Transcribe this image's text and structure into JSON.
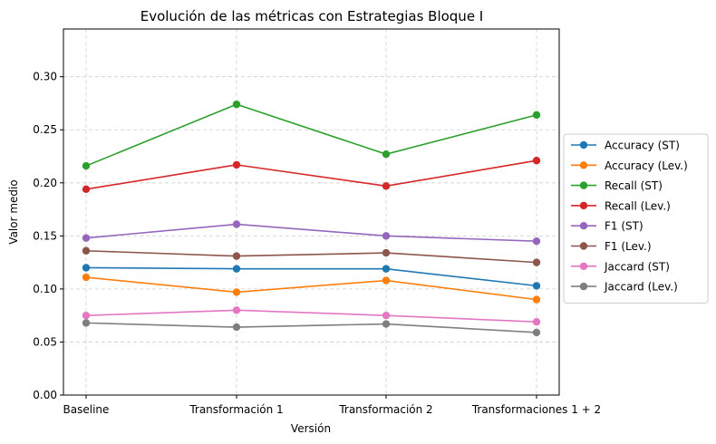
{
  "chart_data": {
    "type": "line",
    "title": "Evolución de las métricas con Estrategias Bloque I",
    "xlabel": "Versión",
    "ylabel": "Valor medio",
    "categories": [
      "Baseline",
      "Transformación 1",
      "Transformación 2",
      "Transformaciones 1 + 2"
    ],
    "ylim": [
      0,
      0.345
    ],
    "yticks": [
      "0.00",
      "0.05",
      "0.10",
      "0.15",
      "0.20",
      "0.25",
      "0.30"
    ],
    "grid": true,
    "legend_position": "right",
    "series": [
      {
        "name": "Accuracy (ST)",
        "color": "#1f77b4",
        "values": [
          0.12,
          0.119,
          0.119,
          0.103
        ]
      },
      {
        "name": "Accuracy (Lev.)",
        "color": "#ff7f0e",
        "values": [
          0.111,
          0.097,
          0.108,
          0.09
        ]
      },
      {
        "name": "Recall (ST)",
        "color": "#2ca02c",
        "values": [
          0.216,
          0.274,
          0.227,
          0.264
        ]
      },
      {
        "name": "Recall (Lev.)",
        "color": "#d62728",
        "values": [
          0.194,
          0.217,
          0.197,
          0.221
        ]
      },
      {
        "name": "F1 (ST)",
        "color": "#9467bd",
        "values": [
          0.148,
          0.161,
          0.15,
          0.145
        ]
      },
      {
        "name": "F1 (Lev.)",
        "color": "#8c564b",
        "values": [
          0.136,
          0.131,
          0.134,
          0.125
        ]
      },
      {
        "name": "Jaccard (ST)",
        "color": "#e377c2",
        "values": [
          0.075,
          0.08,
          0.075,
          0.069
        ]
      },
      {
        "name": "Jaccard (Lev.)",
        "color": "#7f7f7f",
        "values": [
          0.068,
          0.064,
          0.067,
          0.059
        ]
      }
    ]
  }
}
